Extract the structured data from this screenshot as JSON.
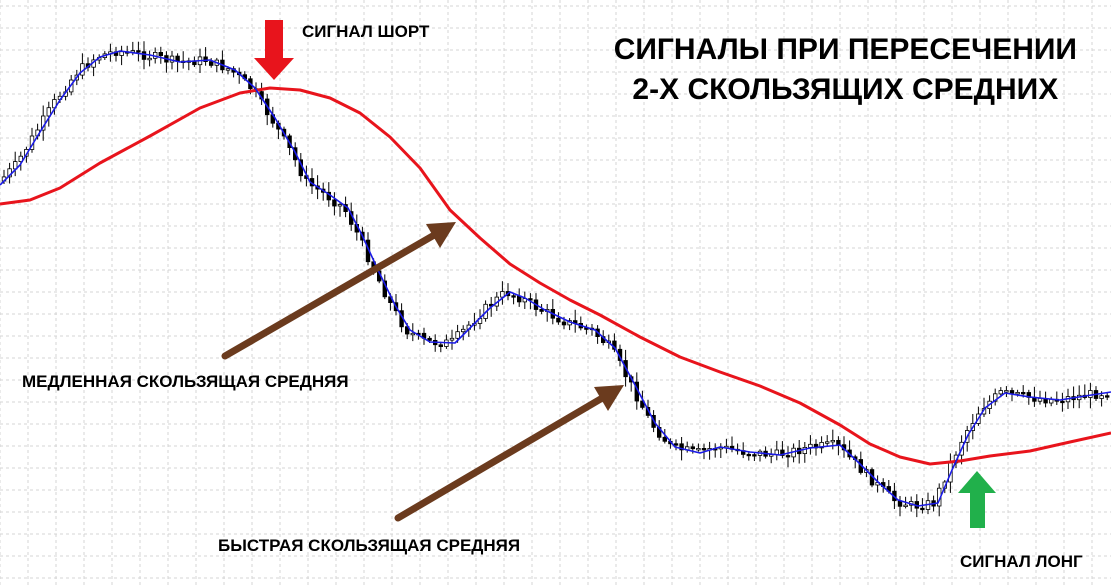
{
  "chart_data": {
    "type": "line",
    "title_lines": [
      "СИГНАЛЫ ПРИ ПЕРЕСЕЧЕНИИ",
      "2-Х СКОЛЬЗЯЩИХ СРЕДНИХ"
    ],
    "annotations": {
      "short_signal": "СИГНАЛ ШОРТ",
      "long_signal": "СИГНАЛ ЛОНГ",
      "slow_ma": "МЕДЛЕННАЯ СКОЛЬЗЯЩАЯ СРЕДНЯЯ",
      "fast_ma": "БЫСТРАЯ СКОЛЬЗЯЩАЯ СРЕДНЯЯ"
    },
    "series": [
      {
        "name": "МЕДЛЕННАЯ СКОЛЬЗЯЩАЯ СРЕДНЯЯ",
        "color": "#e8141c",
        "points": [
          [
            0,
            204
          ],
          [
            30,
            200
          ],
          [
            60,
            188
          ],
          [
            100,
            163
          ],
          [
            150,
            136
          ],
          [
            200,
            108
          ],
          [
            240,
            93
          ],
          [
            270,
            88
          ],
          [
            300,
            90
          ],
          [
            330,
            98
          ],
          [
            360,
            113
          ],
          [
            390,
            137
          ],
          [
            420,
            168
          ],
          [
            450,
            210
          ],
          [
            480,
            238
          ],
          [
            510,
            264
          ],
          [
            540,
            283
          ],
          [
            570,
            300
          ],
          [
            600,
            315
          ],
          [
            640,
            337
          ],
          [
            680,
            357
          ],
          [
            720,
            372
          ],
          [
            760,
            386
          ],
          [
            800,
            403
          ],
          [
            840,
            425
          ],
          [
            870,
            444
          ],
          [
            900,
            457
          ],
          [
            930,
            464
          ],
          [
            960,
            461
          ],
          [
            990,
            456
          ],
          [
            1030,
            451
          ],
          [
            1070,
            442
          ],
          [
            1111,
            433
          ]
        ]
      },
      {
        "name": "БЫСТРАЯ СКОЛЬЗЯЩАЯ СРЕДНЯЯ",
        "color": "#1a1ae6",
        "points": [
          [
            0,
            185
          ],
          [
            20,
            165
          ],
          [
            40,
            132
          ],
          [
            60,
            100
          ],
          [
            80,
            73
          ],
          [
            100,
            57
          ],
          [
            120,
            51
          ],
          [
            150,
            55
          ],
          [
            180,
            62
          ],
          [
            210,
            60
          ],
          [
            235,
            70
          ],
          [
            255,
            88
          ],
          [
            275,
            118
          ],
          [
            295,
            152
          ],
          [
            310,
            182
          ],
          [
            330,
            195
          ],
          [
            348,
            208
          ],
          [
            362,
            235
          ],
          [
            378,
            270
          ],
          [
            395,
            305
          ],
          [
            410,
            330
          ],
          [
            430,
            342
          ],
          [
            455,
            343
          ],
          [
            470,
            328
          ],
          [
            490,
            308
          ],
          [
            510,
            292
          ],
          [
            525,
            298
          ],
          [
            545,
            310
          ],
          [
            570,
            322
          ],
          [
            595,
            330
          ],
          [
            615,
            348
          ],
          [
            635,
            385
          ],
          [
            655,
            423
          ],
          [
            675,
            447
          ],
          [
            700,
            453
          ],
          [
            720,
            447
          ],
          [
            750,
            452
          ],
          [
            780,
            455
          ],
          [
            810,
            448
          ],
          [
            840,
            445
          ],
          [
            858,
            462
          ],
          [
            878,
            482
          ],
          [
            898,
            500
          ],
          [
            918,
            506
          ],
          [
            938,
            503
          ],
          [
            952,
            470
          ],
          [
            968,
            435
          ],
          [
            985,
            408
          ],
          [
            1005,
            393
          ],
          [
            1030,
            397
          ],
          [
            1060,
            400
          ],
          [
            1085,
            396
          ],
          [
            1111,
            392
          ]
        ]
      }
    ],
    "arrows": {
      "down_color": "#e8141c",
      "up_color": "#21b04b",
      "pointer_color": "#6b3b1e"
    },
    "grid": "dashed",
    "xlabel": "",
    "ylabel": ""
  }
}
